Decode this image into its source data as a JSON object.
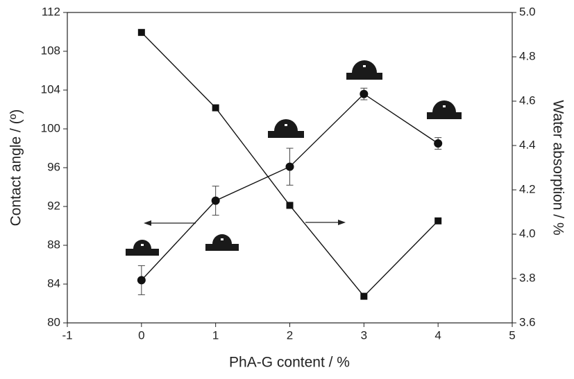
{
  "chart_data": {
    "type": "line",
    "x_label": "PhA-G content / %",
    "y_label": "Contact angle / (º)",
    "y2_label": "Water absorption / %",
    "x": [
      0,
      1,
      2,
      3,
      4
    ],
    "xlim": [
      -1,
      5
    ],
    "xticks": [
      -1,
      0,
      1,
      2,
      3,
      4,
      5
    ],
    "ylim": [
      80,
      112
    ],
    "yticks": [
      80,
      84,
      88,
      92,
      96,
      100,
      104,
      108,
      112
    ],
    "y2lim": [
      3.6,
      5.0
    ],
    "y2ticks": [
      3.6,
      3.8,
      {
        "value": 4,
        "label": "4.0"
      },
      4.2,
      4.4,
      4.6,
      4.8,
      {
        "value": 5,
        "label": "5.0"
      }
    ],
    "series": [
      {
        "color": "#111111",
        "marker": "circle",
        "values": [
          84.4,
          92.6,
          96.1,
          103.6,
          98.5
        ],
        "errors": [
          1.5,
          1.5,
          1.9,
          0.6,
          0.6
        ]
      },
      {
        "color": "#111111",
        "marker": "square",
        "axis": "y2",
        "values": [
          4.91,
          4.57,
          4.13,
          3.72,
          4.06
        ]
      }
    ]
  }
}
